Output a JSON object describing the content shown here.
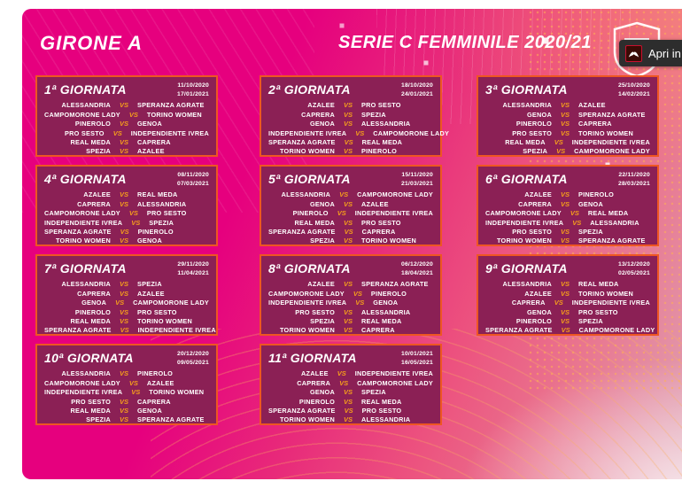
{
  "header": {
    "girone": "GIRONE A",
    "title": "SERIE C FEMMINILE 2020/21",
    "logo_text": "LND"
  },
  "tooltip": {
    "label": "Apri in",
    "icon": "adobe-acrobat-icon"
  },
  "vs_label": "VS",
  "colors": {
    "document_magenta": "#e6007e",
    "card_background": "#8b2055",
    "card_border": "#ee5622",
    "vs_orange": "#f59e1c",
    "tooltip_background": "#2d2d2d",
    "acrobat_red": "#c8102e",
    "text_white": "#ffffff"
  },
  "giornate": [
    {
      "label": "1ª GIORNATA",
      "date1": "11/10/2020",
      "date2": "17/01/2021",
      "matches": [
        {
          "home": "ALESSANDRIA",
          "away": "SPERANZA AGRATE"
        },
        {
          "home": "CAMPOMORONE LADY",
          "away": "TORINO WOMEN"
        },
        {
          "home": "PINEROLO",
          "away": "GENOA"
        },
        {
          "home": "PRO SESTO",
          "away": "INDEPENDIENTE IVREA"
        },
        {
          "home": "REAL MEDA",
          "away": "CAPRERA"
        },
        {
          "home": "SPEZIA",
          "away": "AZALEE"
        }
      ]
    },
    {
      "label": "2ª GIORNATA",
      "date1": "18/10/2020",
      "date2": "24/01/2021",
      "matches": [
        {
          "home": "AZALEE",
          "away": "PRO SESTO"
        },
        {
          "home": "CAPRERA",
          "away": "SPEZIA"
        },
        {
          "home": "GENOA",
          "away": "ALESSANDRIA"
        },
        {
          "home": "INDEPENDIENTE IVREA",
          "away": "CAMPOMORONE LADY"
        },
        {
          "home": "SPERANZA AGRATE",
          "away": "REAL MEDA"
        },
        {
          "home": "TORINO WOMEN",
          "away": "PINEROLO"
        }
      ]
    },
    {
      "label": "3ª GIORNATA",
      "date1": "25/10/2020",
      "date2": "14/02/2021",
      "matches": [
        {
          "home": "ALESSANDRIA",
          "away": "AZALEE"
        },
        {
          "home": "GENOA",
          "away": "SPERANZA AGRATE"
        },
        {
          "home": "PINEROLO",
          "away": "CAPRERA"
        },
        {
          "home": "PRO SESTO",
          "away": "TORINO WOMEN"
        },
        {
          "home": "REAL MEDA",
          "away": "INDEPENDIENTE IVREA"
        },
        {
          "home": "SPEZIA",
          "away": "CAMPOMORONE LADY"
        }
      ]
    },
    {
      "label": "4ª GIORNATA",
      "date1": "08/11/2020",
      "date2": "07/03/2021",
      "matches": [
        {
          "home": "AZALEE",
          "away": "REAL MEDA"
        },
        {
          "home": "CAPRERA",
          "away": "ALESSANDRIA"
        },
        {
          "home": "CAMPOMORONE LADY",
          "away": "PRO SESTO"
        },
        {
          "home": "INDEPENDIENTE IVREA",
          "away": "SPEZIA"
        },
        {
          "home": "SPERANZA AGRATE",
          "away": "PINEROLO"
        },
        {
          "home": "TORINO WOMEN",
          "away": "GENOA"
        }
      ]
    },
    {
      "label": "5ª GIORNATA",
      "date1": "15/11/2020",
      "date2": "21/03/2021",
      "matches": [
        {
          "home": "ALESSANDRIA",
          "away": "CAMPOMORONE LADY"
        },
        {
          "home": "GENOA",
          "away": "AZALEE"
        },
        {
          "home": "PINEROLO",
          "away": "INDEPENDIENTE IVREA"
        },
        {
          "home": "REAL MEDA",
          "away": "PRO SESTO"
        },
        {
          "home": "SPERANZA AGRATE",
          "away": "CAPRERA"
        },
        {
          "home": "SPEZIA",
          "away": "TORINO WOMEN"
        }
      ]
    },
    {
      "label": "6ª GIORNATA",
      "date1": "22/11/2020",
      "date2": "28/03/2021",
      "matches": [
        {
          "home": "AZALEE",
          "away": "PINEROLO"
        },
        {
          "home": "CAPRERA",
          "away": "GENOA"
        },
        {
          "home": "CAMPOMORONE LADY",
          "away": "REAL MEDA"
        },
        {
          "home": "INDEPENDIENTE IVREA",
          "away": "ALESSANDRIA"
        },
        {
          "home": "PRO SESTO",
          "away": "SPEZIA"
        },
        {
          "home": "TORINO WOMEN",
          "away": "SPERANZA AGRATE"
        }
      ]
    },
    {
      "label": "7ª GIORNATA",
      "date1": "29/11/2020",
      "date2": "11/04/2021",
      "matches": [
        {
          "home": "ALESSANDRIA",
          "away": "SPEZIA"
        },
        {
          "home": "CAPRERA",
          "away": "AZALEE"
        },
        {
          "home": "GENOA",
          "away": "CAMPOMORONE LADY"
        },
        {
          "home": "PINEROLO",
          "away": "PRO SESTO"
        },
        {
          "home": "REAL MEDA",
          "away": "TORINO WOMEN"
        },
        {
          "home": "SPERANZA AGRATE",
          "away": "INDEPENDIENTE IVREA"
        }
      ]
    },
    {
      "label": "8ª GIORNATA",
      "date1": "06/12/2020",
      "date2": "18/04/2021",
      "matches": [
        {
          "home": "AZALEE",
          "away": "SPERANZA AGRATE"
        },
        {
          "home": "CAMPOMORONE LADY",
          "away": "PINEROLO"
        },
        {
          "home": "INDEPENDIENTE IVREA",
          "away": "GENOA"
        },
        {
          "home": "PRO SESTO",
          "away": "ALESSANDRIA"
        },
        {
          "home": "SPEZIA",
          "away": "REAL MEDA"
        },
        {
          "home": "TORINO WOMEN",
          "away": "CAPRERA"
        }
      ]
    },
    {
      "label": "9ª GIORNATA",
      "date1": "13/12/2020",
      "date2": "02/05/2021",
      "matches": [
        {
          "home": "ALESSANDRIA",
          "away": "REAL MEDA"
        },
        {
          "home": "AZALEE",
          "away": "TORINO WOMEN"
        },
        {
          "home": "CAPRERA",
          "away": "INDEPENDIENTE IVREA"
        },
        {
          "home": "GENOA",
          "away": "PRO SESTO"
        },
        {
          "home": "PINEROLO",
          "away": "SPEZIA"
        },
        {
          "home": "SPERANZA AGRATE",
          "away": "CAMPOMORONE LADY"
        }
      ]
    },
    {
      "label": "10ª GIORNATA",
      "date1": "20/12/2020",
      "date2": "09/05/2021",
      "matches": [
        {
          "home": "ALESSANDRIA",
          "away": "PINEROLO"
        },
        {
          "home": "CAMPOMORONE LADY",
          "away": "AZALEE"
        },
        {
          "home": "INDEPENDIENTE IVREA",
          "away": "TORINO WOMEN"
        },
        {
          "home": "PRO SESTO",
          "away": "CAPRERA"
        },
        {
          "home": "REAL MEDA",
          "away": "GENOA"
        },
        {
          "home": "SPEZIA",
          "away": "SPERANZA AGRATE"
        }
      ]
    },
    {
      "label": "11ª GIORNATA",
      "date1": "10/01/2021",
      "date2": "16/05/2021",
      "matches": [
        {
          "home": "AZALEE",
          "away": "INDEPENDIENTE IVREA"
        },
        {
          "home": "CAPRERA",
          "away": "CAMPOMORONE LADY"
        },
        {
          "home": "GENOA",
          "away": "SPEZIA"
        },
        {
          "home": "PINEROLO",
          "away": "REAL MEDA"
        },
        {
          "home": "SPERANZA AGRATE",
          "away": "PRO SESTO"
        },
        {
          "home": "TORINO WOMEN",
          "away": "ALESSANDRIA"
        }
      ]
    }
  ]
}
